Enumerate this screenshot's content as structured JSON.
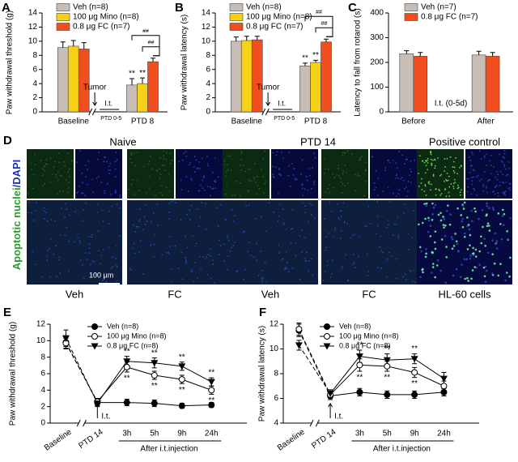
{
  "chart_data": [
    {
      "label": "A",
      "type": "bar",
      "y_label": "Paw withdrawal threshold (g)",
      "categories": [
        "Baseline",
        "PTD 8"
      ],
      "series": [
        {
          "name": "Veh (n=8)",
          "color": "#c8beb6",
          "values": [
            9.1,
            3.8
          ],
          "errors": [
            0.8,
            0.9
          ],
          "significance": [
            null,
            "**"
          ]
        },
        {
          "name": "100 μg Mino (n=8)",
          "color": "#f7d117",
          "values": [
            9.3,
            4.0
          ],
          "errors": [
            0.8,
            0.8
          ],
          "significance": [
            null,
            "**"
          ]
        },
        {
          "name": "0.8 μg FC (n=7)",
          "color": "#f04e1f",
          "values": [
            8.9,
            7.1
          ],
          "errors": [
            0.9,
            0.5
          ],
          "significance": [
            null,
            null
          ]
        }
      ],
      "comparisons": [
        "##",
        "##"
      ],
      "annotations": [
        "Tumor",
        "I.t.",
        "PTD 0-5"
      ],
      "ylim": [
        0,
        14
      ],
      "yticks": [
        0,
        2,
        4,
        6,
        8,
        10,
        12,
        14
      ]
    },
    {
      "label": "B",
      "type": "bar",
      "y_label": "Paw withdrawal latency (s)",
      "categories": [
        "Baseline",
        "PTD 8"
      ],
      "series": [
        {
          "name": "Veh (n=8)",
          "color": "#c8beb6",
          "values": [
            10.0,
            6.5
          ],
          "errors": [
            0.6,
            0.4
          ],
          "significance": [
            null,
            "**"
          ]
        },
        {
          "name": "100 μg Mino (n=8)",
          "color": "#f7d117",
          "values": [
            10.1,
            7.0
          ],
          "errors": [
            0.6,
            0.3
          ],
          "significance": [
            null,
            "**"
          ]
        },
        {
          "name": "0.8 μg FC (n=7)",
          "color": "#f04e1f",
          "values": [
            10.2,
            9.9
          ],
          "errors": [
            0.5,
            0.4
          ],
          "significance": [
            null,
            null
          ]
        }
      ],
      "comparisons": [
        "##",
        "##"
      ],
      "annotations": [
        "Tumor",
        "I.t.",
        "PTD 0-5"
      ],
      "ylim": [
        0,
        14
      ],
      "yticks": [
        0,
        2,
        4,
        6,
        8,
        10,
        12,
        14
      ]
    },
    {
      "label": "C",
      "type": "bar",
      "y_label": "Latency to fall from rotarod (s)",
      "categories": [
        "Before",
        "After"
      ],
      "series": [
        {
          "name": "Veh (n=7)",
          "color": "#c8beb6",
          "values": [
            235,
            230
          ],
          "errors": [
            12,
            15
          ]
        },
        {
          "name": "0.8 μg FC (n=7)",
          "color": "#f04e1f",
          "values": [
            225,
            225
          ],
          "errors": [
            15,
            15
          ]
        }
      ],
      "annotations": [
        "I.t. (0-5d)"
      ],
      "ylim": [
        0,
        400
      ],
      "yticks": [
        0,
        100,
        200,
        300,
        400
      ]
    },
    {
      "label": "E",
      "type": "line",
      "y_label": "Paw withdrawal threshold (g)",
      "categories": [
        "Baseline",
        "PTD 14",
        "3h",
        "5h",
        "9h",
        "24h"
      ],
      "annotations": [
        "I.t.",
        "After i.t.injection"
      ],
      "series": [
        {
          "name": "Veh (n=8)",
          "color": "#000000",
          "marker": "circle",
          "values": [
            9.8,
            2.5,
            2.5,
            2.4,
            2.1,
            2.2
          ],
          "errors": [
            0.8,
            0.4,
            0.4,
            0.4,
            0.3,
            0.3
          ]
        },
        {
          "name": "100 μg Mino (n=8)",
          "color": "#000000",
          "marker": "circle-open",
          "values": [
            9.7,
            2.6,
            6.8,
            5.8,
            5.3,
            4.0
          ],
          "errors": [
            0.6,
            0.4,
            0.6,
            0.5,
            0.5,
            0.5
          ],
          "significance": [
            null,
            null,
            "**",
            "**",
            "**",
            "**"
          ]
        },
        {
          "name": "0.8 μg FC (n=8)",
          "color": "#000000",
          "marker": "triangle-down",
          "values": [
            10.3,
            2.4,
            7.5,
            7.3,
            6.9,
            5.0
          ],
          "errors": [
            1.0,
            0.4,
            0.6,
            0.6,
            0.5,
            0.5
          ],
          "significance": [
            null,
            null,
            "**",
            "**",
            "**",
            "**"
          ]
        }
      ],
      "ylim": [
        0,
        12
      ],
      "yticks": [
        0,
        2,
        4,
        6,
        8,
        10,
        12
      ]
    },
    {
      "label": "F",
      "type": "line",
      "y_label": "Paw withdrawal latency (s)",
      "categories": [
        "Baseline",
        "PTD 14",
        "3h",
        "5h",
        "9h",
        "24h"
      ],
      "annotations": [
        "I.t.",
        "After i.t.injection"
      ],
      "series": [
        {
          "name": "Veh (n=8)",
          "color": "#000000",
          "marker": "circle",
          "values": [
            11.5,
            6.2,
            6.5,
            6.3,
            6.3,
            6.5
          ],
          "errors": [
            0.5,
            0.3,
            0.3,
            0.3,
            0.3,
            0.3
          ]
        },
        {
          "name": "100 μg Mino (n=8)",
          "color": "#000000",
          "marker": "circle-open",
          "values": [
            11.6,
            6.3,
            8.7,
            8.6,
            8.1,
            7.0
          ],
          "errors": [
            0.5,
            0.3,
            0.5,
            0.4,
            0.4,
            0.4
          ],
          "significance": [
            null,
            null,
            "**",
            "**",
            "**",
            null
          ]
        },
        {
          "name": "0.8 μg FC (n=8)",
          "color": "#000000",
          "marker": "triangle-down",
          "values": [
            10.3,
            6.4,
            9.4,
            9.1,
            9.2,
            7.6
          ],
          "errors": [
            0.4,
            0.3,
            0.5,
            0.5,
            0.4,
            0.5
          ],
          "significance": [
            null,
            null,
            "**",
            "**",
            "**",
            null
          ]
        }
      ],
      "ylim": [
        4,
        12
      ],
      "yticks": [
        4,
        6,
        8,
        10,
        12
      ]
    }
  ],
  "panel_d": {
    "label": "D",
    "columns": [
      "Naive",
      "PTD 14",
      "Positive control"
    ],
    "y_label_green": "Apoptotic nuclei",
    "y_label_blue": "/DAPI",
    "scale_bar": "100 μm",
    "image_labels": [
      "Veh",
      "FC",
      "Veh",
      "FC",
      "HL-60 cells"
    ]
  }
}
